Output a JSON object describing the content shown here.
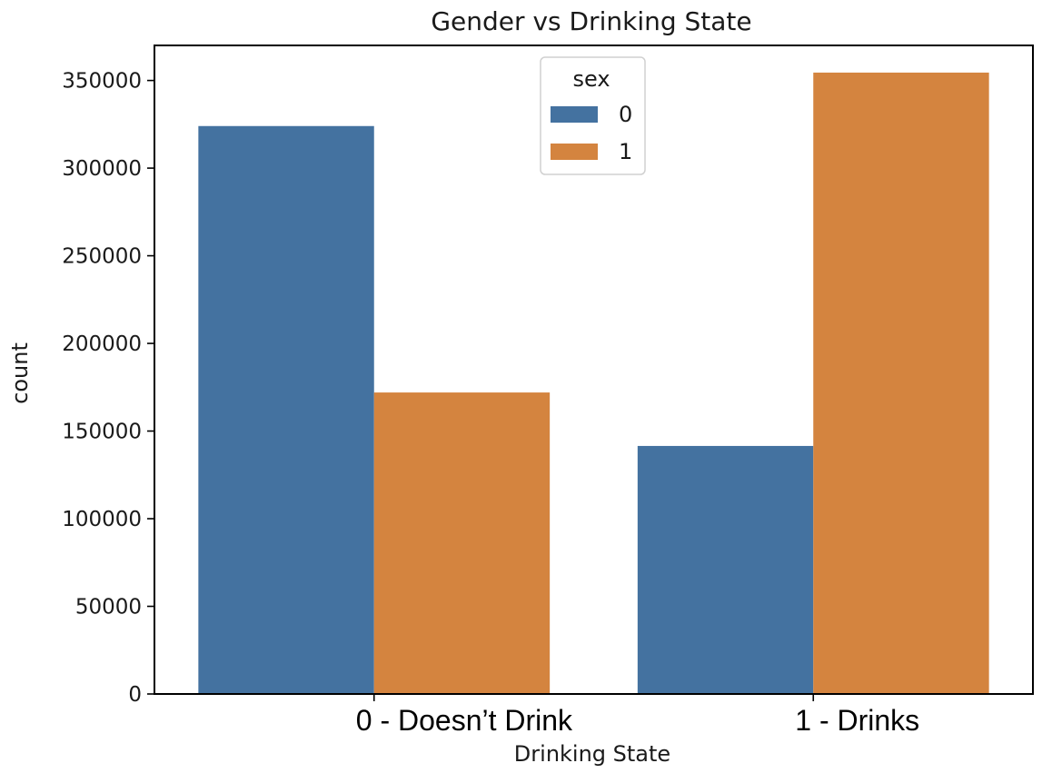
{
  "chart_data": {
    "type": "bar",
    "title": "Gender vs Drinking State",
    "xlabel": "Drinking State",
    "ylabel": "count",
    "categories": [
      "0 - Doesn’t Drink",
      "1 - Drinks"
    ],
    "series": [
      {
        "name": "0",
        "color": "#4472a0",
        "values": [
          324000,
          141500
        ]
      },
      {
        "name": "1",
        "color": "#d4843f",
        "values": [
          172000,
          354500
        ]
      }
    ],
    "ylim": [
      0,
      370000
    ],
    "yticks": [
      0,
      50000,
      100000,
      150000,
      200000,
      250000,
      300000,
      350000
    ],
    "ytick_labels": [
      "0",
      "50000",
      "100000",
      "150000",
      "200000",
      "250000",
      "300000",
      "350000"
    ],
    "legend": {
      "title": "sex",
      "position": "top-center"
    },
    "grid": false
  }
}
